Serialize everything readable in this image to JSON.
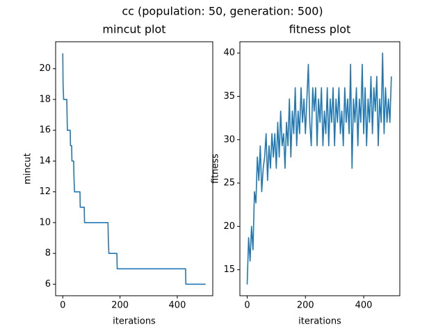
{
  "title": "cc (population: 50, generation: 500)",
  "chart_data": [
    {
      "type": "line",
      "title": "mincut plot",
      "xlabel": "iterations",
      "ylabel": "mincut",
      "color": "#1f77b4",
      "x": [
        0,
        1,
        3,
        14,
        15,
        16,
        26,
        27,
        31,
        32,
        38,
        39,
        41,
        60,
        61,
        75,
        76,
        158,
        159,
        161,
        189,
        190,
        429,
        430,
        499
      ],
      "values": [
        21,
        19,
        18,
        18,
        17,
        16,
        16,
        15,
        15,
        14,
        14,
        13,
        12,
        12,
        11,
        11,
        10,
        10,
        9,
        8,
        8,
        7,
        7,
        6,
        6
      ],
      "xlim": [
        -25,
        524
      ],
      "xticks": [
        0,
        200,
        400
      ],
      "ylim": [
        5.25,
        21.75
      ],
      "yticks": [
        6,
        8,
        10,
        12,
        14,
        16,
        18,
        20
      ]
    },
    {
      "type": "line",
      "title": "fitness plot",
      "xlabel": "iterations",
      "ylabel": "fitness",
      "color": "#1f77b4",
      "x": [
        0,
        5,
        10,
        15,
        20,
        25,
        30,
        35,
        40,
        45,
        50,
        55,
        60,
        65,
        70,
        75,
        80,
        85,
        90,
        95,
        100,
        105,
        110,
        115,
        120,
        125,
        130,
        135,
        140,
        145,
        150,
        155,
        160,
        165,
        170,
        175,
        180,
        185,
        190,
        195,
        200,
        205,
        210,
        215,
        220,
        225,
        230,
        235,
        240,
        245,
        250,
        255,
        260,
        265,
        270,
        275,
        280,
        285,
        290,
        295,
        300,
        305,
        310,
        315,
        320,
        325,
        330,
        335,
        340,
        345,
        350,
        355,
        360,
        365,
        370,
        375,
        380,
        385,
        390,
        395,
        400,
        405,
        410,
        415,
        420,
        425,
        430,
        435,
        440,
        445,
        450,
        455,
        460,
        465,
        470,
        475,
        480,
        485,
        490,
        495
      ],
      "values": [
        13.3,
        18.7,
        16,
        20,
        17.3,
        24,
        22.7,
        28,
        25.3,
        29.3,
        24,
        26.7,
        28,
        30.7,
        25.3,
        29.3,
        26.7,
        30.7,
        28,
        30.7,
        26.7,
        32,
        28,
        33.3,
        29.3,
        30.7,
        26.7,
        32,
        29.3,
        34.7,
        28,
        33.3,
        30.7,
        36,
        29.3,
        33.3,
        30.7,
        36,
        32,
        34.7,
        30.7,
        34.7,
        38.7,
        32,
        29.3,
        36,
        33.3,
        36,
        29.3,
        34.7,
        32,
        36,
        29.3,
        33.3,
        30.7,
        36,
        29.3,
        34.7,
        32,
        36,
        29.3,
        34.7,
        32,
        36,
        30.7,
        33.3,
        29.3,
        36,
        32,
        34.7,
        30.7,
        38.7,
        26.7,
        34.7,
        32,
        36,
        29.3,
        34.7,
        32,
        38.7,
        30.7,
        36,
        29.3,
        34.7,
        32,
        37.3,
        30.7,
        36,
        33.3,
        37.3,
        29.3,
        34.7,
        32,
        40,
        30.7,
        36,
        32,
        34.7,
        32,
        37.3
      ],
      "xlim": [
        -25,
        524
      ],
      "xticks": [
        0,
        200,
        400
      ],
      "ylim": [
        12.0,
        41.3
      ],
      "yticks": [
        15,
        20,
        25,
        30,
        35,
        40
      ]
    }
  ]
}
